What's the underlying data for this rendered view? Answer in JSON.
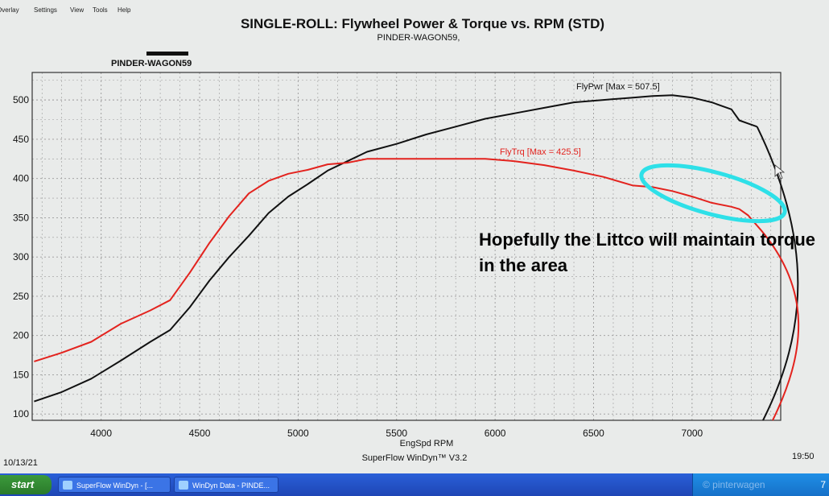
{
  "window": {
    "menu": [
      "Overlay",
      "Settings",
      "View",
      "Tools",
      "Help"
    ]
  },
  "header": {
    "title": "SINGLE-ROLL: Flywheel Power & Torque vs. RPM (STD)",
    "subtitle": "PINDER-WAGON59,",
    "legend_run": "PINDER-WAGON59"
  },
  "footer": {
    "date": "10/13/21",
    "software": "SuperFlow WinDyn™ V3.2",
    "time": "19:50"
  },
  "annotation": {
    "text": "Hopefully the Littco will maintain torque in the area"
  },
  "chart_data": {
    "type": "line",
    "title": "SINGLE-ROLL: Flywheel Power & Torque vs. RPM (STD)",
    "subtitle": "PINDER-WAGON59,",
    "xlabel": "EngSpd RPM",
    "ylabel": "",
    "xlim": [
      3650,
      7450
    ],
    "ylim": [
      92,
      535
    ],
    "x_ticks": [
      4000,
      4500,
      5000,
      5500,
      6000,
      6500,
      7000
    ],
    "y_ticks": [
      100,
      150,
      200,
      250,
      300,
      350,
      400,
      450,
      500
    ],
    "y_tick_labels": [
      "100",
      "150",
      "200",
      "250",
      "300",
      "350",
      "400",
      "450",
      "500"
    ],
    "grid": true,
    "series": [
      {
        "name": "FlyPwr",
        "label": "FlyPwr [Max = 507.5]",
        "color": "#111111",
        "points": [
          [
            3660,
            116
          ],
          [
            3800,
            128
          ],
          [
            3950,
            145
          ],
          [
            4100,
            168
          ],
          [
            4250,
            192
          ],
          [
            4350,
            207
          ],
          [
            4450,
            236
          ],
          [
            4550,
            270
          ],
          [
            4650,
            300
          ],
          [
            4750,
            327
          ],
          [
            4850,
            356
          ],
          [
            4950,
            377
          ],
          [
            5050,
            393
          ],
          [
            5150,
            410
          ],
          [
            5250,
            422
          ],
          [
            5350,
            434
          ],
          [
            5500,
            444
          ],
          [
            5650,
            456
          ],
          [
            5800,
            466
          ],
          [
            5950,
            476
          ],
          [
            6100,
            483
          ],
          [
            6250,
            490
          ],
          [
            6400,
            497
          ],
          [
            6550,
            500
          ],
          [
            6700,
            503
          ],
          [
            6800,
            505
          ],
          [
            6900,
            506
          ],
          [
            7000,
            503
          ],
          [
            7100,
            497
          ],
          [
            7200,
            488
          ],
          [
            7240,
            474
          ],
          [
            7285,
            470
          ],
          [
            7330,
            466
          ]
        ]
      },
      {
        "name": "FlyTrq",
        "label": "FlyTrq [Max = 425.5]",
        "color": "#e3231e",
        "points": [
          [
            3660,
            167
          ],
          [
            3800,
            178
          ],
          [
            3950,
            192
          ],
          [
            4100,
            215
          ],
          [
            4250,
            232
          ],
          [
            4350,
            245
          ],
          [
            4450,
            280
          ],
          [
            4550,
            318
          ],
          [
            4650,
            352
          ],
          [
            4750,
            381
          ],
          [
            4850,
            397
          ],
          [
            4950,
            406
          ],
          [
            5050,
            411
          ],
          [
            5150,
            418
          ],
          [
            5250,
            420
          ],
          [
            5350,
            425
          ],
          [
            5500,
            425
          ],
          [
            5650,
            425
          ],
          [
            5800,
            425
          ],
          [
            5950,
            425
          ],
          [
            6100,
            422
          ],
          [
            6250,
            417
          ],
          [
            6400,
            410
          ],
          [
            6550,
            402
          ],
          [
            6700,
            391
          ],
          [
            6800,
            389
          ],
          [
            6900,
            384
          ],
          [
            7000,
            377
          ],
          [
            7100,
            369
          ],
          [
            7200,
            364
          ],
          [
            7240,
            361
          ],
          [
            7285,
            353
          ],
          [
            7330,
            340
          ]
        ]
      }
    ],
    "annotations": [
      {
        "type": "ellipse",
        "color": "#2ee0e8",
        "rpm_range": [
          6550,
          7300
        ],
        "value_range": [
          350,
          420
        ]
      }
    ],
    "legend": "inline labels near curves"
  },
  "taskbar": {
    "start_label": "start",
    "items": [
      {
        "label": "SuperFlow WinDyn - [..."
      },
      {
        "label": "WinDyn Data - PINDE..."
      }
    ],
    "tray_text": "7"
  },
  "watermark": "© pinterwagen"
}
